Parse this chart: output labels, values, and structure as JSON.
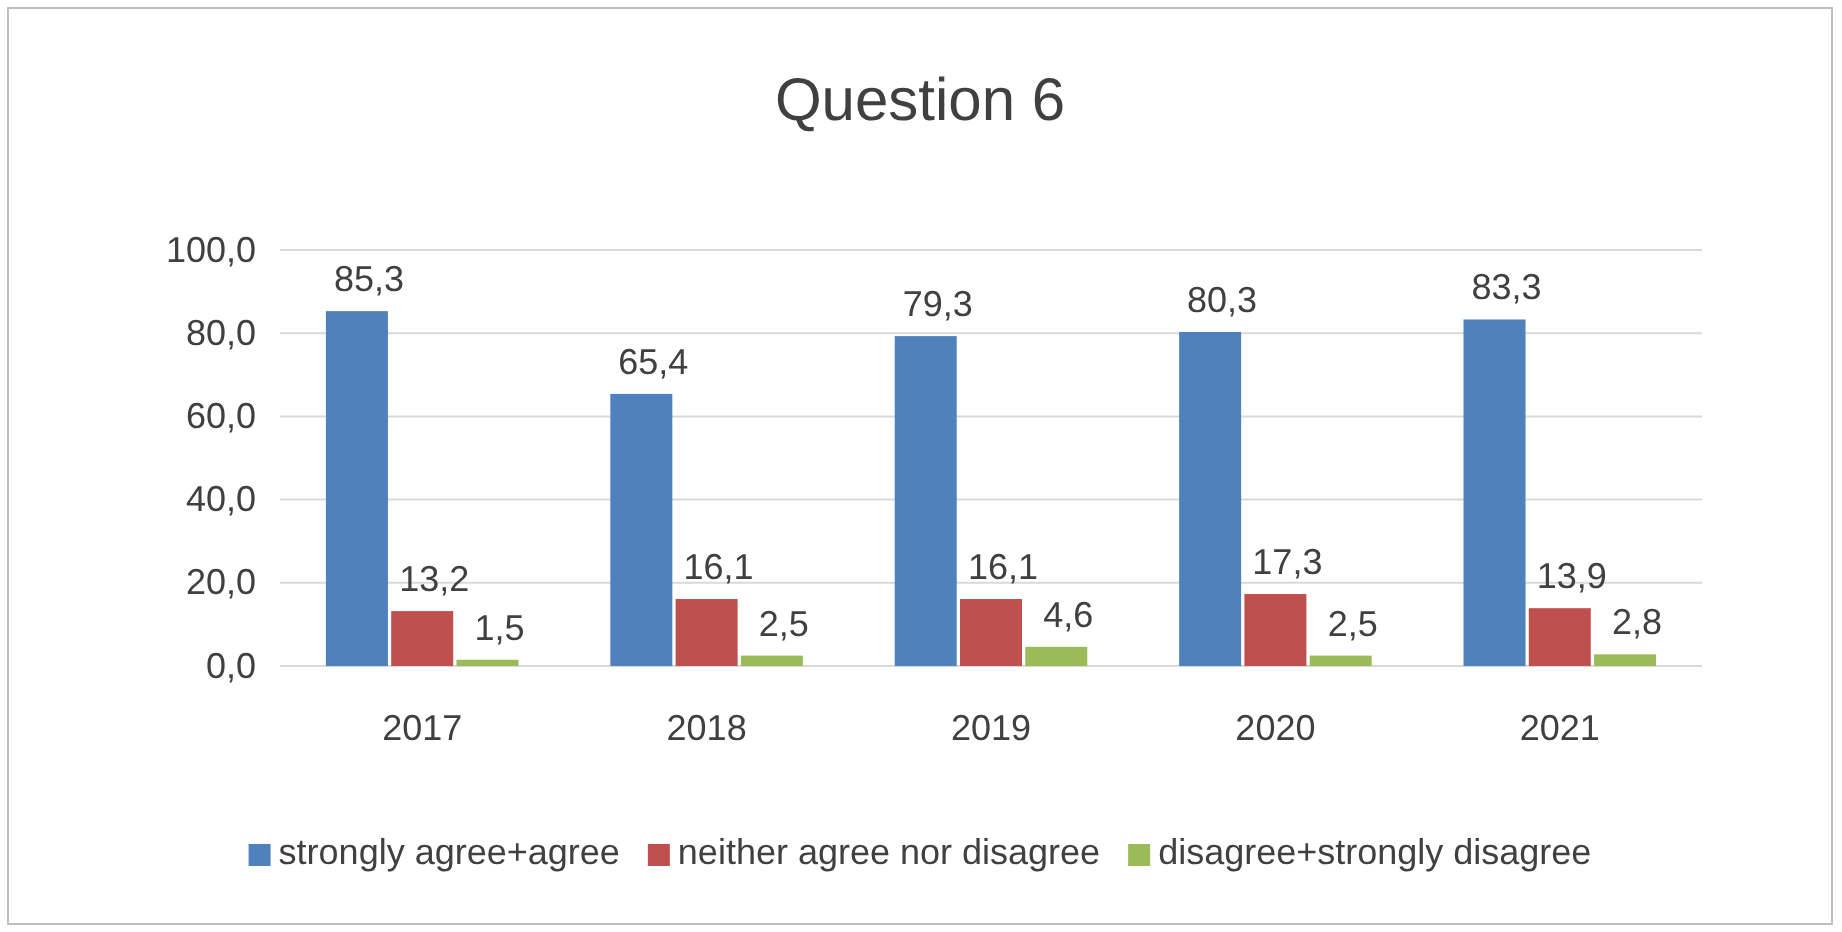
{
  "chart_data": {
    "type": "bar",
    "title": "Question 6",
    "categories": [
      "2017",
      "2018",
      "2019",
      "2020",
      "2021"
    ],
    "series": [
      {
        "name": "strongly agree+agree",
        "color": "#4f81bd",
        "values": [
          85.3,
          65.4,
          79.3,
          80.3,
          83.3
        ],
        "value_labels": [
          "85,3",
          "65,4",
          "79,3",
          "80,3",
          "83,3"
        ]
      },
      {
        "name": "neither agree nor disagree",
        "color": "#c0504d",
        "values": [
          13.2,
          16.1,
          16.1,
          17.3,
          13.9
        ],
        "value_labels": [
          "13,2",
          "16,1",
          "16,1",
          "17,3",
          "13,9"
        ]
      },
      {
        "name": "disagree+strongly disagree",
        "color": "#9bbb59",
        "values": [
          1.5,
          2.5,
          4.6,
          2.5,
          2.8
        ],
        "value_labels": [
          "1,5",
          "2,5",
          "4,6",
          "2,5",
          "2,8"
        ]
      }
    ],
    "ylim": [
      0,
      100
    ],
    "yticks": [
      {
        "value": 0,
        "label": "0,0"
      },
      {
        "value": 20,
        "label": "20,0"
      },
      {
        "value": 40,
        "label": "40,0"
      },
      {
        "value": 60,
        "label": "60,0"
      },
      {
        "value": 80,
        "label": "80,0"
      },
      {
        "value": 100,
        "label": "100,0"
      }
    ],
    "grid": "y",
    "legend": "bottom"
  }
}
